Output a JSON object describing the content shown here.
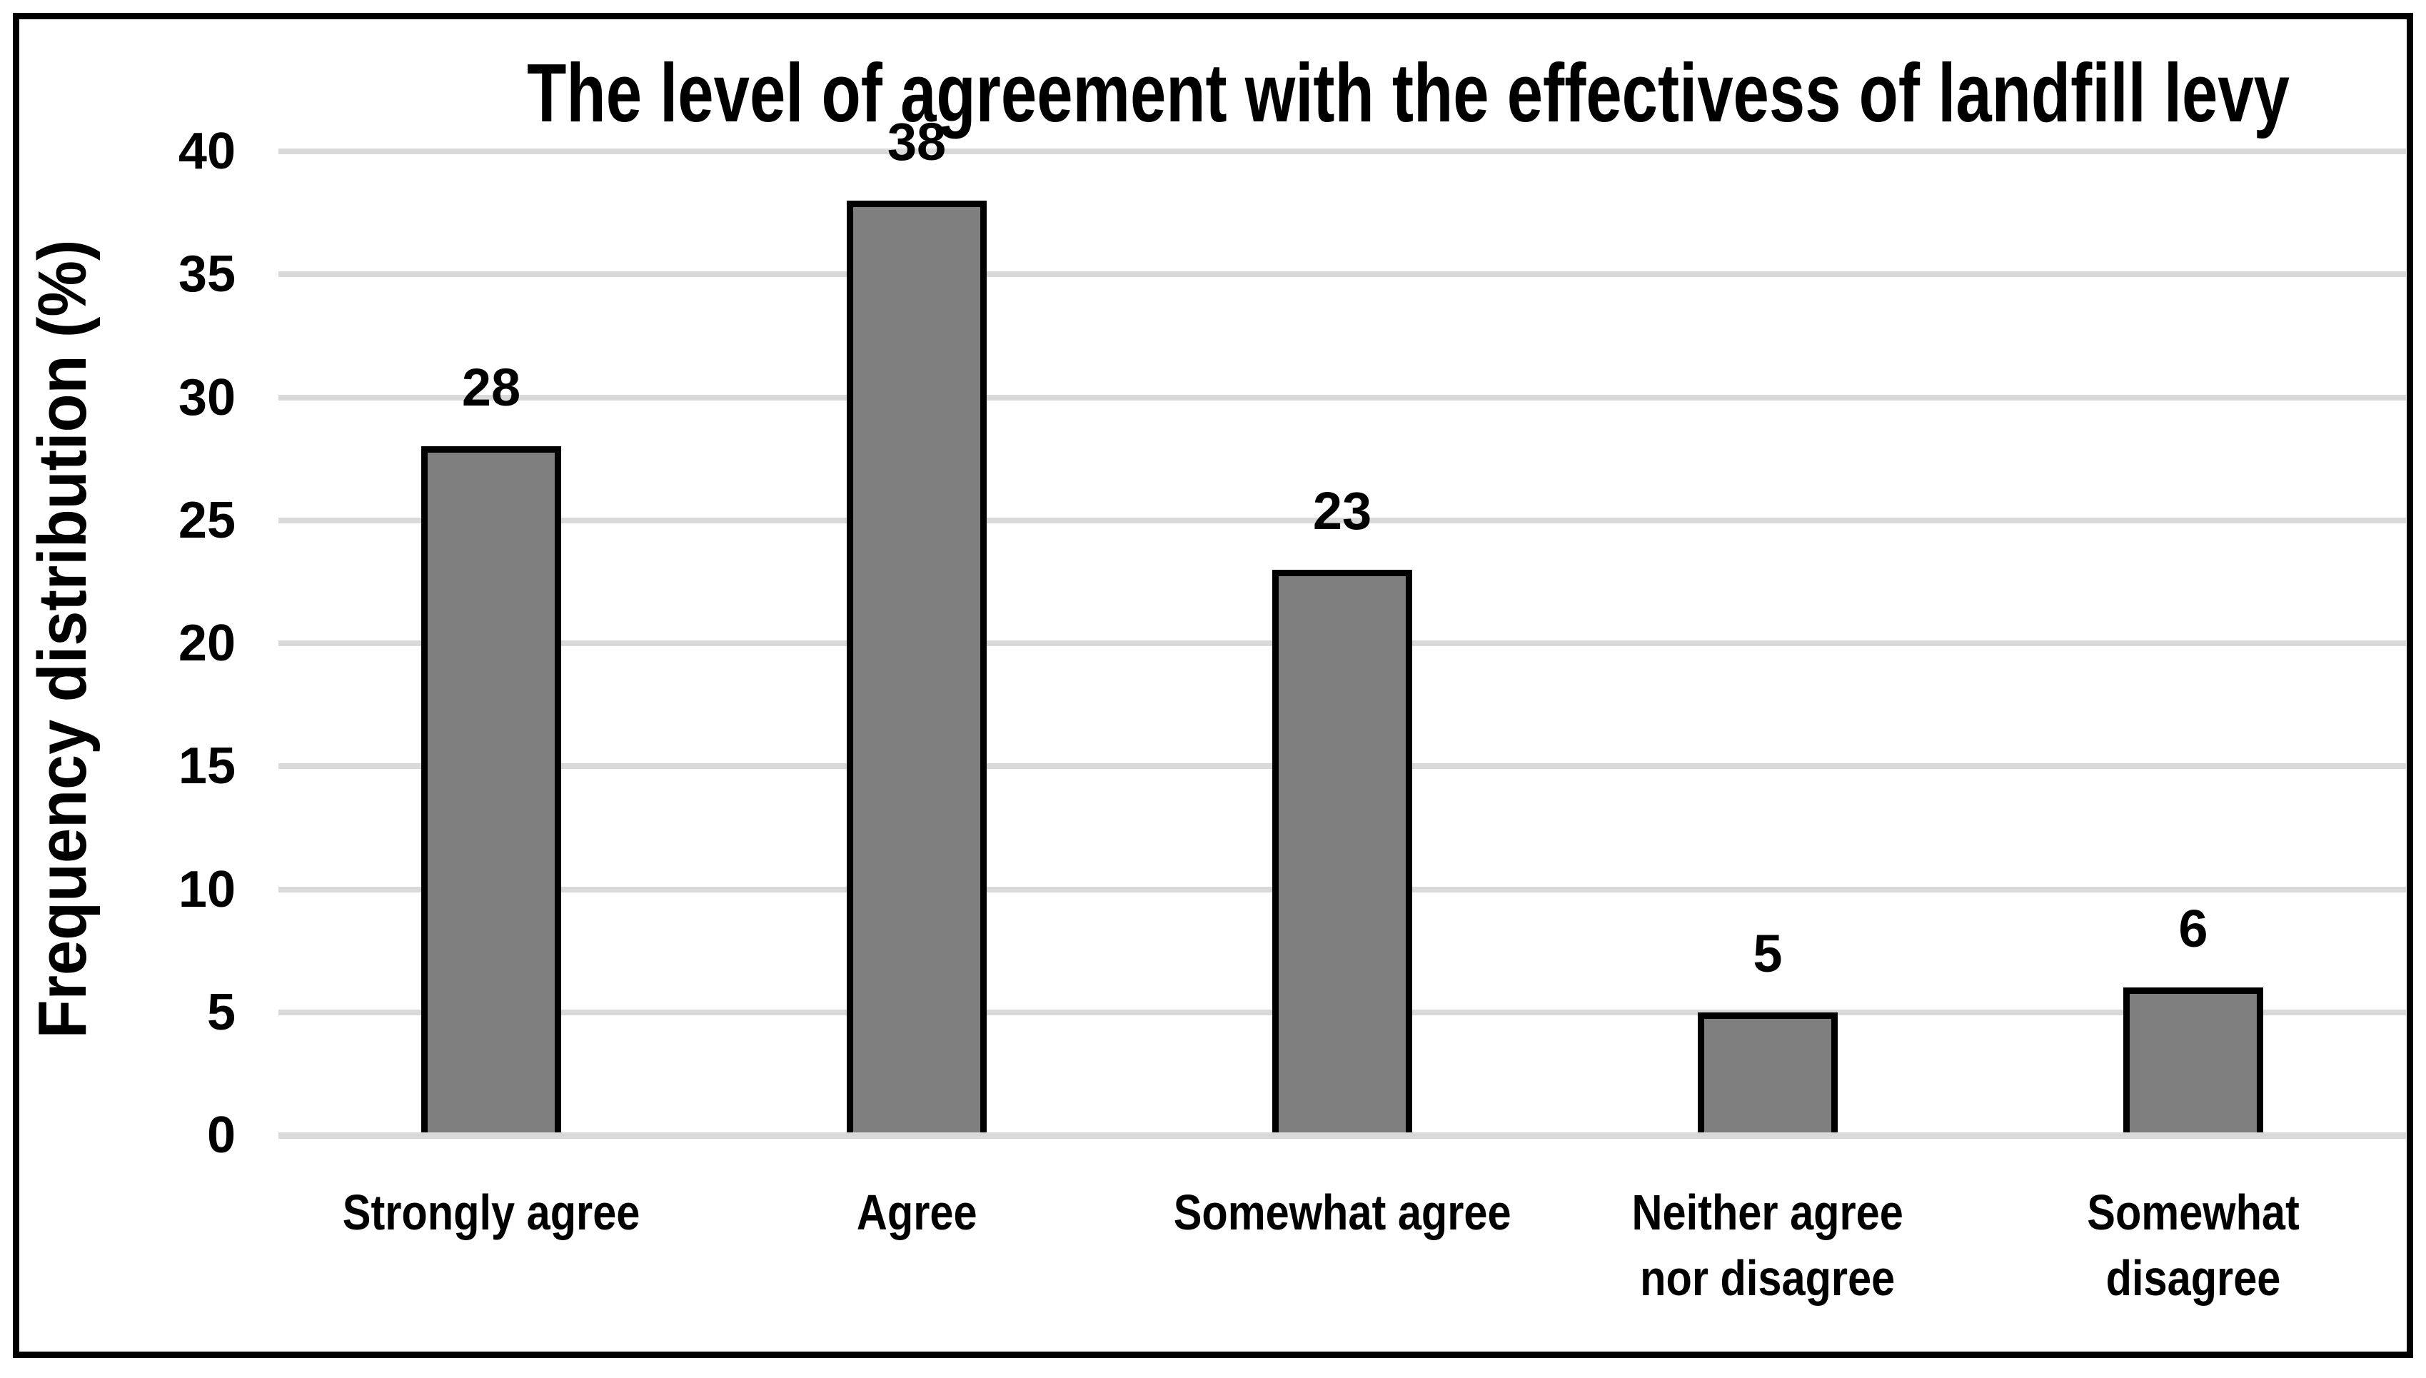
{
  "chart_data": {
    "type": "bar",
    "title": "The level of agreement with the effectivess of landfill levy",
    "ylabel": "Frequency distribution (%)",
    "xlabel": "",
    "categories": [
      "Strongly agree",
      "Agree",
      "Somewhat agree",
      "Neither agree\nnor disagree",
      "Somewhat\ndisagree"
    ],
    "values": [
      28,
      38,
      23,
      5,
      6
    ],
    "data_labels": [
      "28",
      "38",
      "23",
      "5",
      "6"
    ],
    "y_ticks": [
      0,
      5,
      10,
      15,
      20,
      25,
      30,
      35,
      40
    ],
    "ylim": [
      0,
      40
    ],
    "grid": "horizontal-only",
    "legend_position": "none",
    "colors": {
      "bar_fill": "#7F7F7F",
      "bar_border": "#000000",
      "gridline": "#D9D9D9",
      "text": "#000000",
      "background": "#FFFFFF",
      "outer_border": "#000000"
    }
  }
}
